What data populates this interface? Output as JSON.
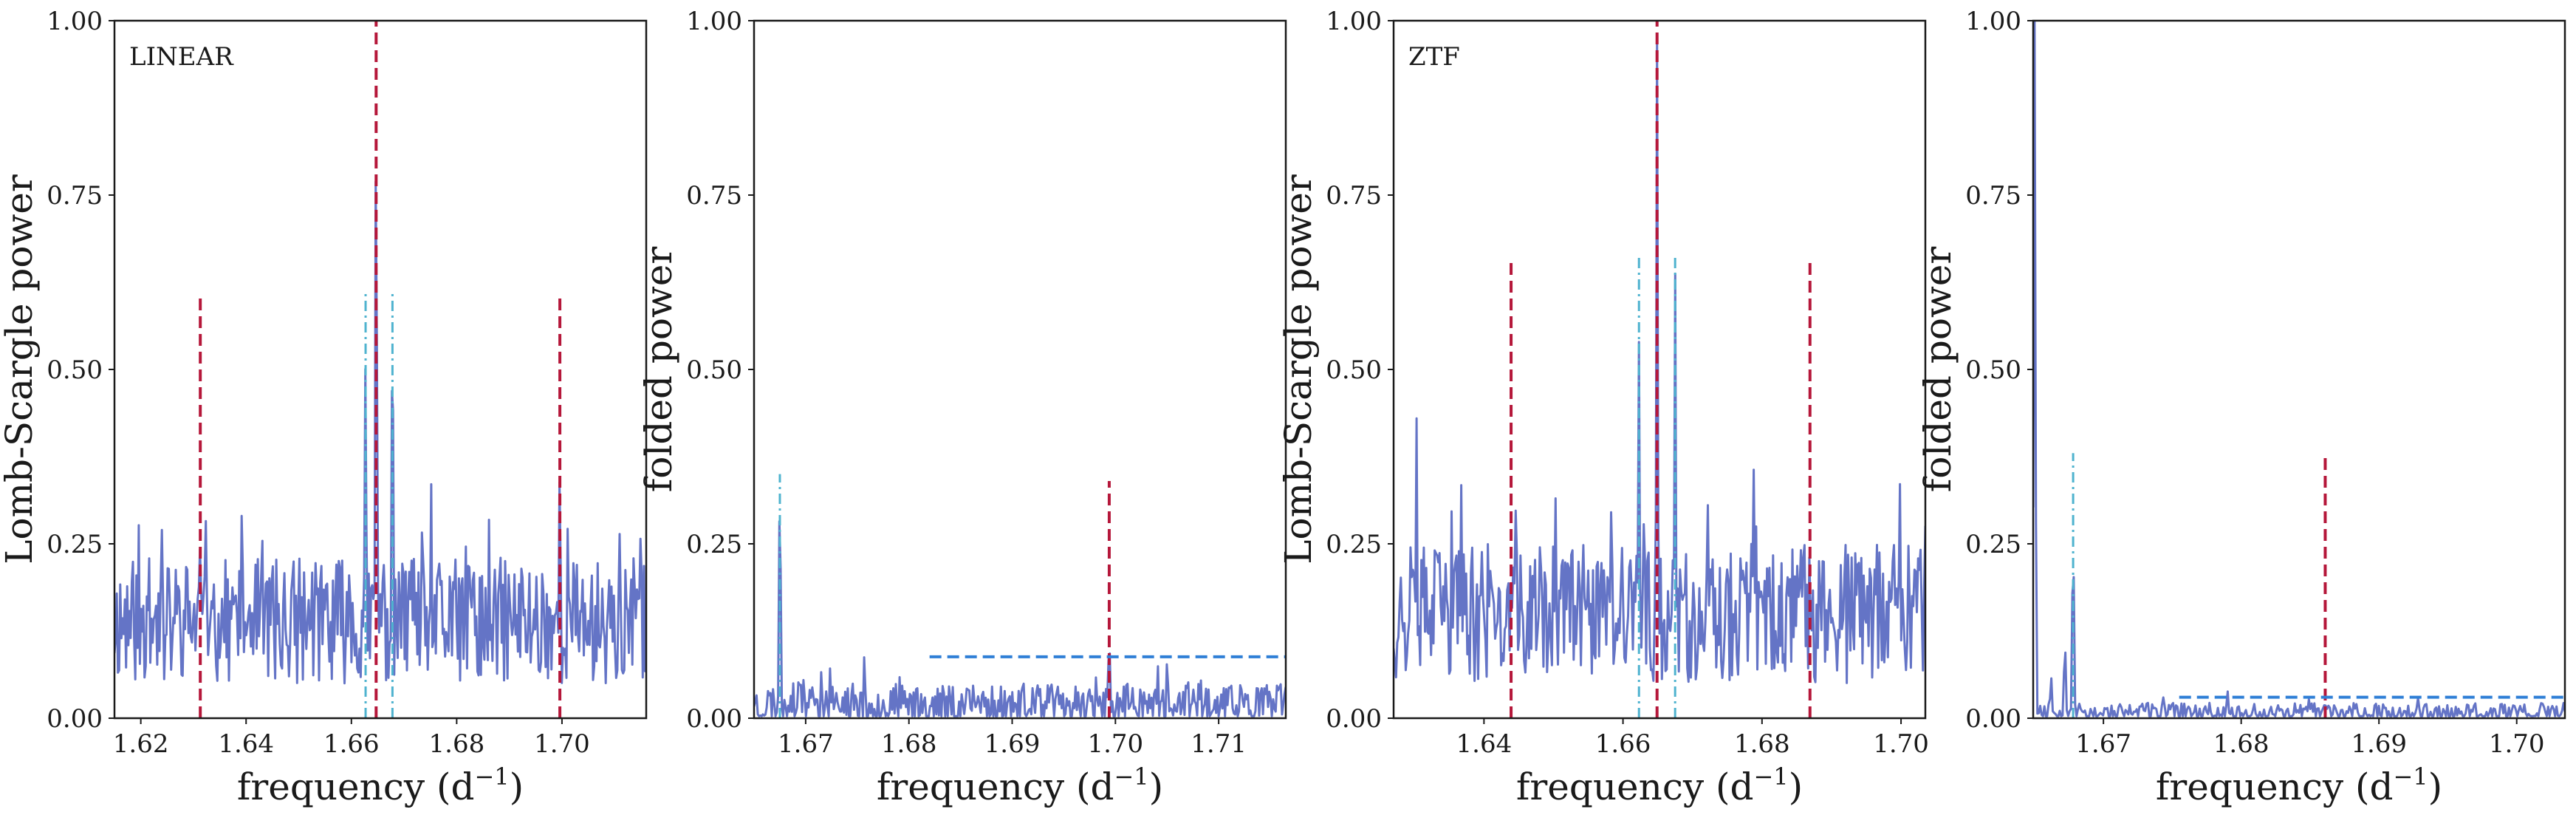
{
  "chart_data": [
    {
      "type": "line",
      "panel_label": "LINEAR",
      "xlabel": "frequency (d",
      "xlabel_sup": "−1",
      "xlabel_close": ")",
      "ylabel": "Lomb-Scargle power",
      "xlim": [
        1.615,
        1.716
      ],
      "ylim": [
        0,
        1
      ],
      "xticks": [
        "1.62",
        "1.64",
        "1.66",
        "1.68",
        "1.70"
      ],
      "yticks": [
        "0.00",
        "0.25",
        "0.50",
        "0.75",
        "1.00"
      ],
      "noise": {
        "seed": 11,
        "n": 460,
        "base": 0.14,
        "amp": 0.09
      },
      "series": [
        {
          "peaks": [
            [
              1.6313,
              0.26
            ],
            [
              1.6627,
              0.54
            ],
            [
              1.6647,
              0.9
            ],
            [
              1.6678,
              0.62
            ],
            [
              1.6996,
              0.38
            ],
            [
              1.624,
              0.27
            ]
          ]
        }
      ],
      "vlines": [
        {
          "x": 1.6313,
          "y": [
            0,
            0.61
          ],
          "style": "dashed",
          "color": "#b5173a"
        },
        {
          "x": 1.6647,
          "y": [
            0,
            1.0
          ],
          "style": "dashed",
          "color": "#b5173a"
        },
        {
          "x": 1.6996,
          "y": [
            0,
            0.61
          ],
          "style": "dashed",
          "color": "#b5173a"
        },
        {
          "x": 1.6627,
          "y": [
            0,
            0.61
          ],
          "style": "dashdot",
          "color": "#4fb3cf"
        },
        {
          "x": 1.6678,
          "y": [
            0,
            0.61
          ],
          "style": "dashdot",
          "color": "#4fb3cf"
        }
      ],
      "hlines": []
    },
    {
      "type": "line",
      "xlabel": "frequency (d",
      "xlabel_sup": "−1",
      "xlabel_close": ")",
      "ylabel": "folded power",
      "xlim": [
        1.665,
        1.7165
      ],
      "ylim": [
        0,
        1
      ],
      "xticks": [
        "1.67",
        "1.68",
        "1.69",
        "1.70",
        "1.71"
      ],
      "yticks": [
        "0.00",
        "0.25",
        "0.50",
        "0.75",
        "1.00"
      ],
      "noise": {
        "seed": 23,
        "n": 420,
        "base": 0.02,
        "amp": 0.03
      },
      "series": [
        {
          "peaks": [
            [
              1.6648,
              0.45
            ],
            [
              1.6675,
              0.34
            ],
            [
              1.6994,
              0.12
            ]
          ]
        }
      ],
      "vlines": [
        {
          "x": 1.6994,
          "y": [
            0,
            0.34
          ],
          "style": "dashed",
          "color": "#b5173a"
        },
        {
          "x": 1.6675,
          "y": [
            0,
            0.35
          ],
          "style": "dashdot",
          "color": "#4fb3cf"
        }
      ],
      "hlines": [
        {
          "y": 0.088,
          "x": [
            1.682,
            1.7165
          ],
          "style": "dashed",
          "color": "#2f7fd6"
        }
      ]
    },
    {
      "type": "line",
      "panel_label": "ZTF",
      "xlabel": "frequency (d",
      "xlabel_sup": "−1",
      "xlabel_close": ")",
      "ylabel": "Lomb-Scargle power",
      "xlim": [
        1.627,
        1.7035
      ],
      "ylim": [
        0,
        1
      ],
      "xticks": [
        "1.64",
        "1.66",
        "1.68",
        "1.70"
      ],
      "yticks": [
        "0.00",
        "0.25",
        "0.50",
        "0.75",
        "1.00"
      ],
      "noise": {
        "seed": 37,
        "n": 440,
        "base": 0.15,
        "amp": 0.1
      },
      "series": [
        {
          "peaks": [
            [
              1.6303,
              0.43
            ],
            [
              1.6623,
              0.54
            ],
            [
              1.6649,
              0.97
            ],
            [
              1.6675,
              0.64
            ],
            [
              1.6998,
              0.37
            ],
            [
              1.6869,
              0.21
            ]
          ]
        }
      ],
      "vlines": [
        {
          "x": 1.6439,
          "y": [
            0,
            0.66
          ],
          "style": "dashed",
          "color": "#b5173a"
        },
        {
          "x": 1.6649,
          "y": [
            0,
            1.0
          ],
          "style": "dashed",
          "color": "#b5173a"
        },
        {
          "x": 1.6869,
          "y": [
            0,
            0.66
          ],
          "style": "dashed",
          "color": "#b5173a"
        },
        {
          "x": 1.6623,
          "y": [
            0,
            0.66
          ],
          "style": "dashdot",
          "color": "#4fb3cf"
        },
        {
          "x": 1.6675,
          "y": [
            0,
            0.66
          ],
          "style": "dashdot",
          "color": "#4fb3cf"
        }
      ],
      "hlines": []
    },
    {
      "type": "line",
      "xlabel": "frequency (d",
      "xlabel_sup": "−1",
      "xlabel_close": ")",
      "ylabel": "folded power",
      "xlim": [
        1.6649,
        1.7035
      ],
      "ylim": [
        0,
        1
      ],
      "xticks": [
        "1.67",
        "1.68",
        "1.69",
        "1.70"
      ],
      "yticks": [
        "0.00",
        "0.25",
        "0.50",
        "0.75",
        "1.00"
      ],
      "noise": {
        "seed": 53,
        "n": 380,
        "base": 0.008,
        "amp": 0.014
      },
      "series": [
        {
          "peaks": [
            [
              1.665,
              1.0
            ],
            [
              1.6662,
              0.06
            ],
            [
              1.6672,
              0.11
            ],
            [
              1.6678,
              0.26
            ],
            [
              1.679,
              0.04
            ],
            [
              1.6861,
              0.02
            ]
          ]
        }
      ],
      "vlines": [
        {
          "x": 1.6861,
          "y": [
            0,
            0.38
          ],
          "style": "dashed",
          "color": "#b5173a"
        },
        {
          "x": 1.6678,
          "y": [
            0,
            0.38
          ],
          "style": "dashdot",
          "color": "#4fb3cf"
        }
      ],
      "hlines": [
        {
          "y": 0.03,
          "x": [
            1.6755,
            1.7035
          ],
          "style": "dashed",
          "color": "#2f7fd6"
        }
      ]
    }
  ]
}
